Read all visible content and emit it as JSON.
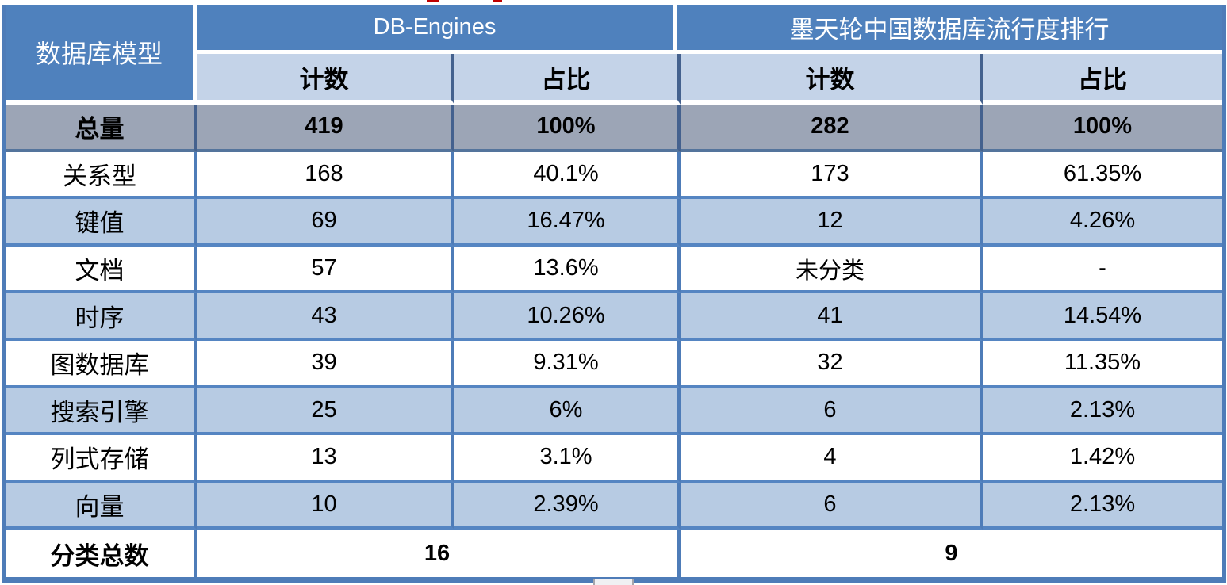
{
  "table": {
    "model_header": "数据库模型",
    "groups": [
      {
        "label": "DB-Engines"
      },
      {
        "label": "墨天轮中国数据库流行度排行"
      }
    ],
    "sub_headers": [
      "计数",
      "占比",
      "计数",
      "占比"
    ],
    "rows": [
      {
        "label": "总量",
        "values": [
          "419",
          "100%",
          "282",
          "100%"
        ]
      },
      {
        "label": "关系型",
        "values": [
          "168",
          "40.1%",
          "173",
          "61.35%"
        ]
      },
      {
        "label": "键值",
        "values": [
          "69",
          "16.47%",
          "12",
          "4.26%"
        ]
      },
      {
        "label": "文档",
        "values": [
          "57",
          "13.6%",
          "未分类",
          "-"
        ]
      },
      {
        "label": "时序",
        "values": [
          "43",
          "10.26%",
          "41",
          "14.54%"
        ]
      },
      {
        "label": "图数据库",
        "values": [
          "39",
          "9.31%",
          "32",
          "11.35%"
        ]
      },
      {
        "label": "搜索引擎",
        "values": [
          "25",
          "6%",
          "6",
          "2.13%"
        ]
      },
      {
        "label": "列式存储",
        "values": [
          "13",
          "3.1%",
          "4",
          "1.42%"
        ]
      },
      {
        "label": "向量",
        "values": [
          "10",
          "2.39%",
          "6",
          "2.13%"
        ]
      }
    ],
    "footer": {
      "label": "分类总数",
      "de_total": "16",
      "mt_total": "9"
    }
  },
  "colors": {
    "header_blue": "#4F81BD",
    "sub_header_bg": "#C4D3E8",
    "alt_row_bg": "#B7CBE3",
    "total_row_bg": "#9CA5B6",
    "grid_border_blue": "#4E7CB8",
    "dark_divider": "#44618E",
    "clipped_text_red": "#C00000"
  },
  "chart_data": {
    "type": "table",
    "columns": [
      "数据库模型",
      "DB-Engines 计数",
      "DB-Engines 占比",
      "墨天轮中国数据库流行度排行 计数",
      "墨天轮中国数据库流行度排行 占比"
    ],
    "rows": [
      [
        "总量",
        "419",
        "100%",
        "282",
        "100%"
      ],
      [
        "关系型",
        "168",
        "40.1%",
        "173",
        "61.35%"
      ],
      [
        "键值",
        "69",
        "16.47%",
        "12",
        "4.26%"
      ],
      [
        "文档",
        "57",
        "13.6%",
        "未分类",
        "-"
      ],
      [
        "时序",
        "43",
        "10.26%",
        "41",
        "14.54%"
      ],
      [
        "图数据库",
        "39",
        "9.31%",
        "32",
        "11.35%"
      ],
      [
        "搜索引擎",
        "25",
        "6%",
        "6",
        "2.13%"
      ],
      [
        "列式存储",
        "13",
        "3.1%",
        "4",
        "1.42%"
      ],
      [
        "向量",
        "10",
        "2.39%",
        "6",
        "2.13%"
      ],
      [
        "分类总数",
        "16",
        "",
        "9",
        ""
      ]
    ]
  }
}
